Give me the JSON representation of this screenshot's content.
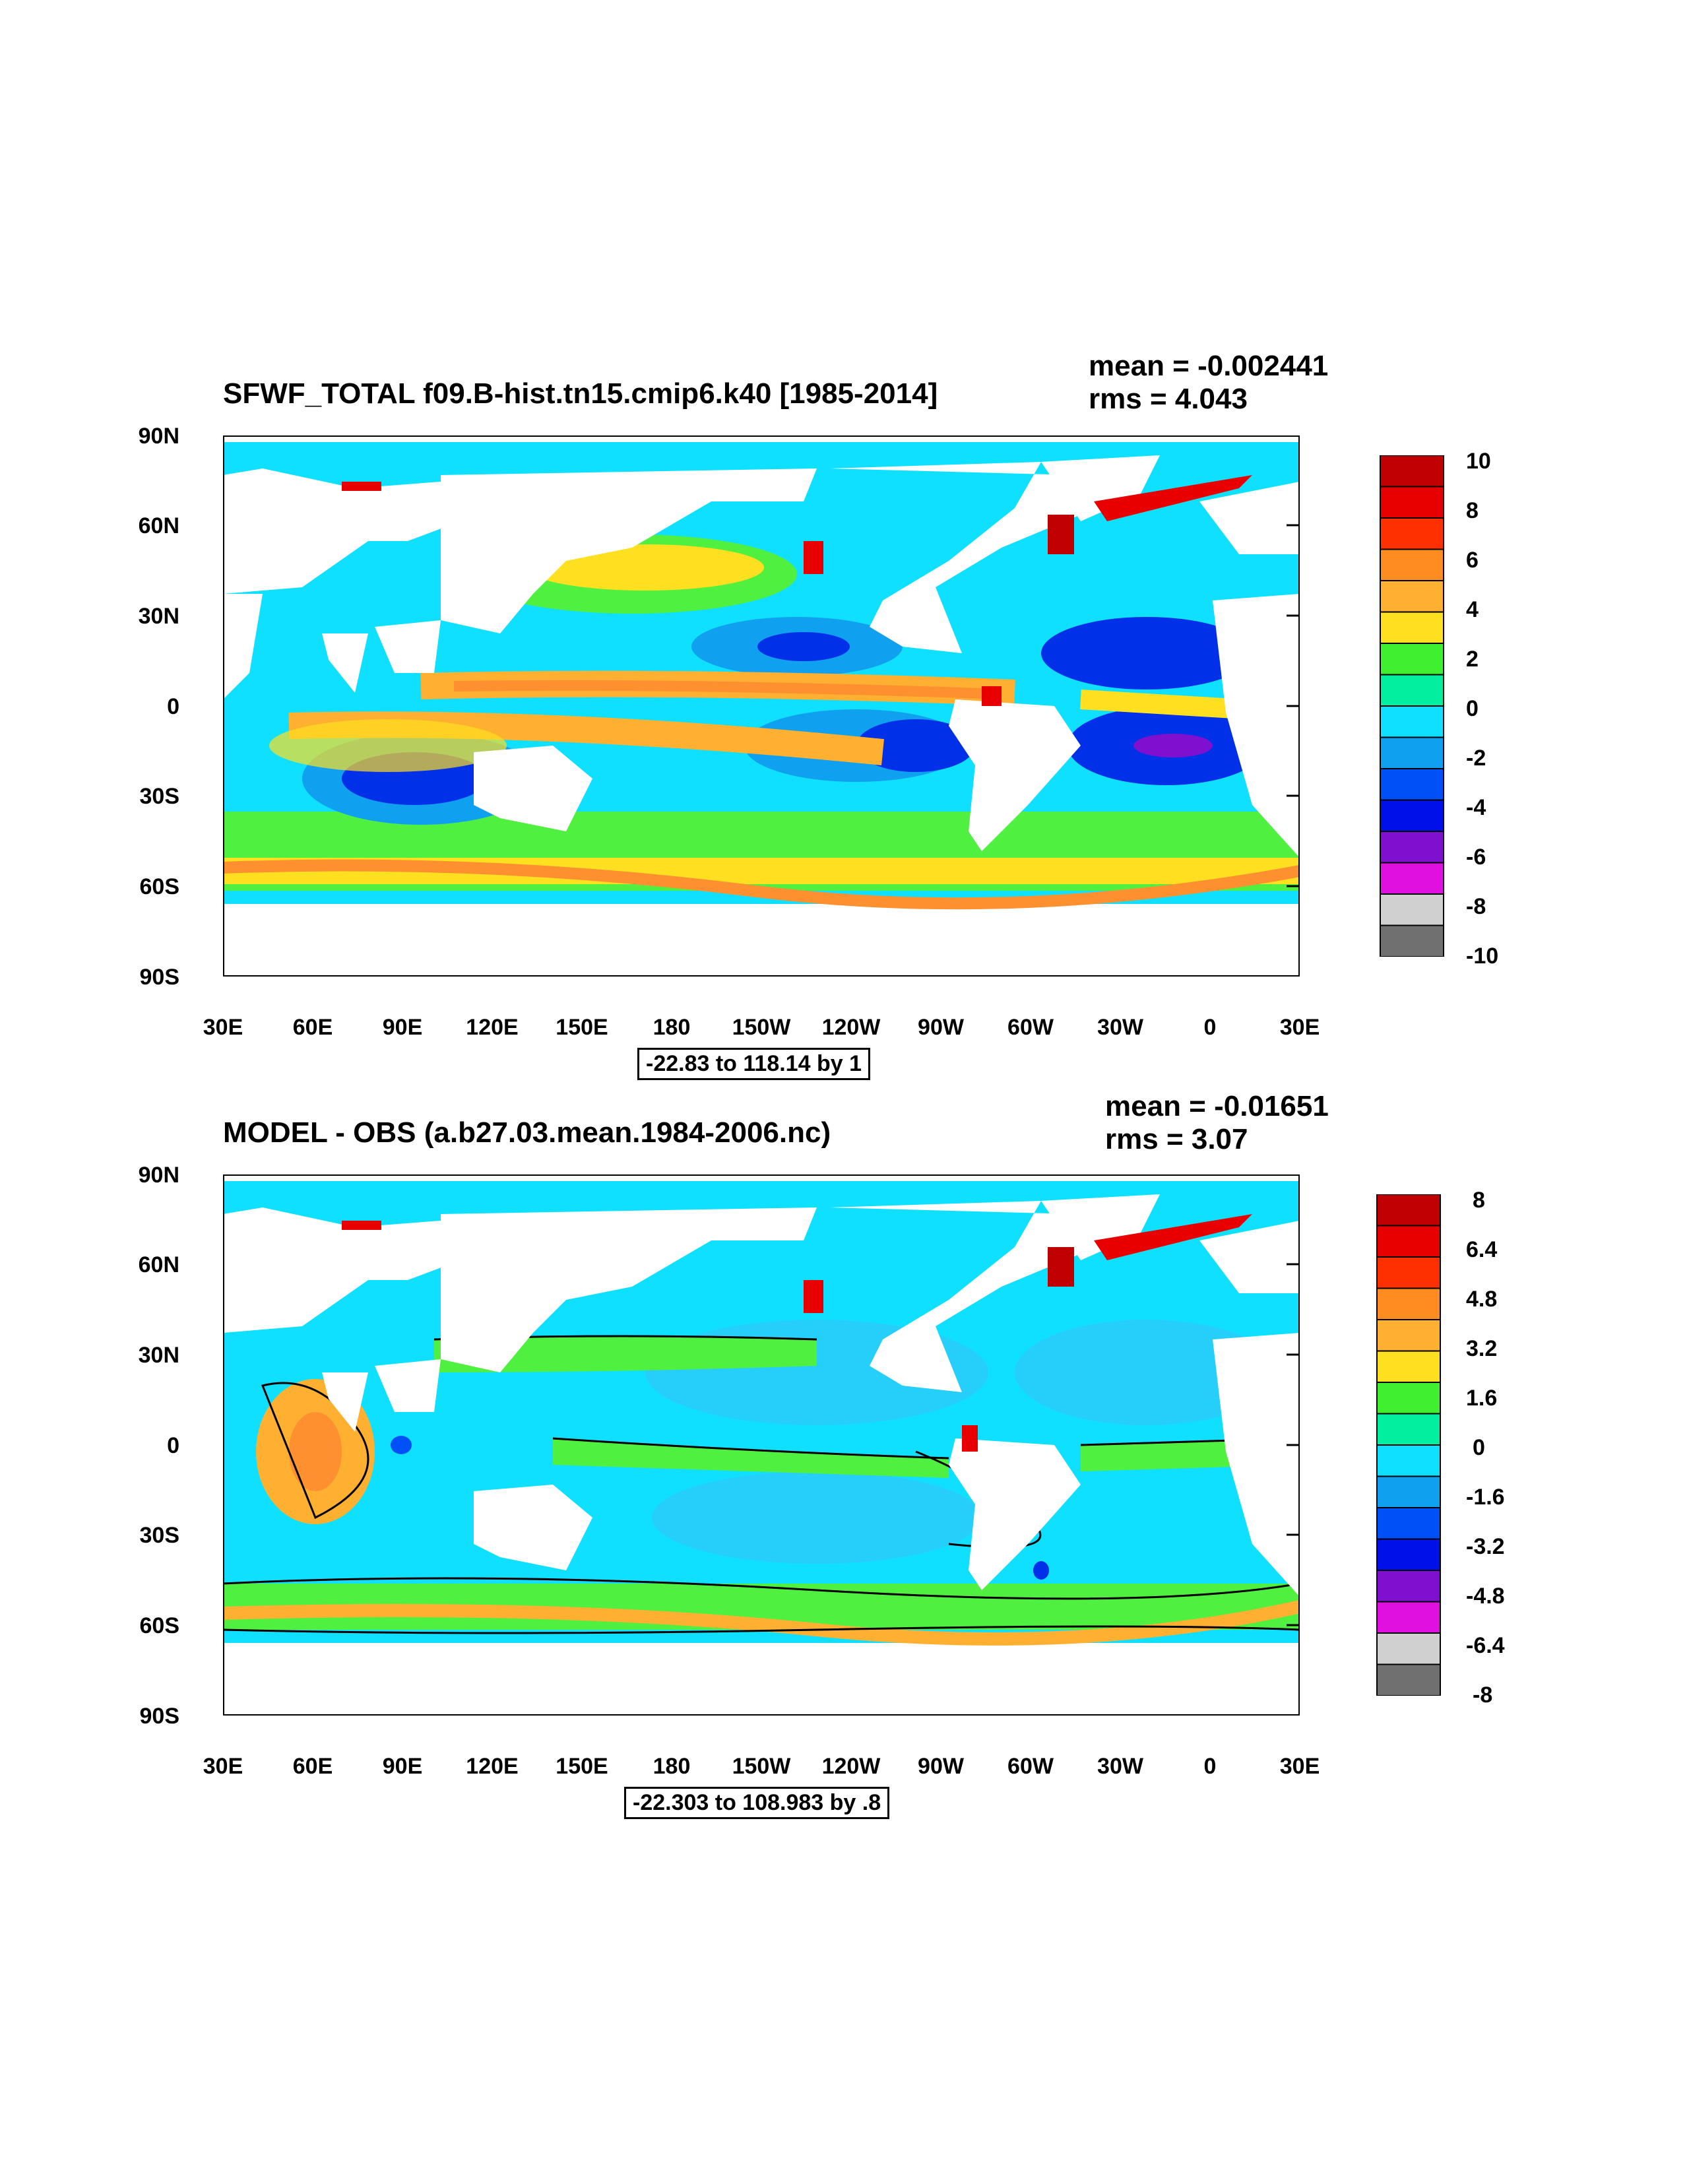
{
  "panels": [
    {
      "title": "SFWF_TOTAL f09.B-hist.tn15.cmip6.k40 [1985-2014]",
      "mean": "mean = -0.002441",
      "rms": "rms = 4.043",
      "range_label": "-22.83 to 118.14 by 1",
      "colorbar_labels": [
        "10",
        "8",
        "6",
        "4",
        "2",
        "0",
        "-2",
        "-4",
        "-6",
        "-8",
        "-10"
      ]
    },
    {
      "title": "MODEL - OBS (a.b27.03.mean.1984-2006.nc)",
      "mean": "mean = -0.01651",
      "rms": "rms = 3.07",
      "range_label": "-22.303 to 108.983 by .8",
      "colorbar_labels": [
        "8",
        "6.4",
        "4.8",
        "3.2",
        "1.6",
        "0",
        "-1.6",
        "-3.2",
        "-4.8",
        "-6.4",
        "-8"
      ]
    }
  ],
  "axes": {
    "lat_labels": [
      "90N",
      "60N",
      "30N",
      "0",
      "30S",
      "60S",
      "90S"
    ],
    "lon_labels": [
      "30E",
      "60E",
      "90E",
      "120E",
      "150E",
      "180",
      "150W",
      "120W",
      "90W",
      "60W",
      "30W",
      "0",
      "30E"
    ]
  },
  "colorbar_colors": [
    "#c00000",
    "#e80000",
    "#ff3000",
    "#ff8c20",
    "#ffb030",
    "#ffe020",
    "#40f030",
    "#00f0a0",
    "#10e0ff",
    "#10a0f0",
    "#0050f8",
    "#0010e8",
    "#8010d0",
    "#e010e0",
    "#d0d0d0",
    "#707070"
  ],
  "colors": {
    "ocean_base": "#10e0ff",
    "land": "#ffffff"
  }
}
